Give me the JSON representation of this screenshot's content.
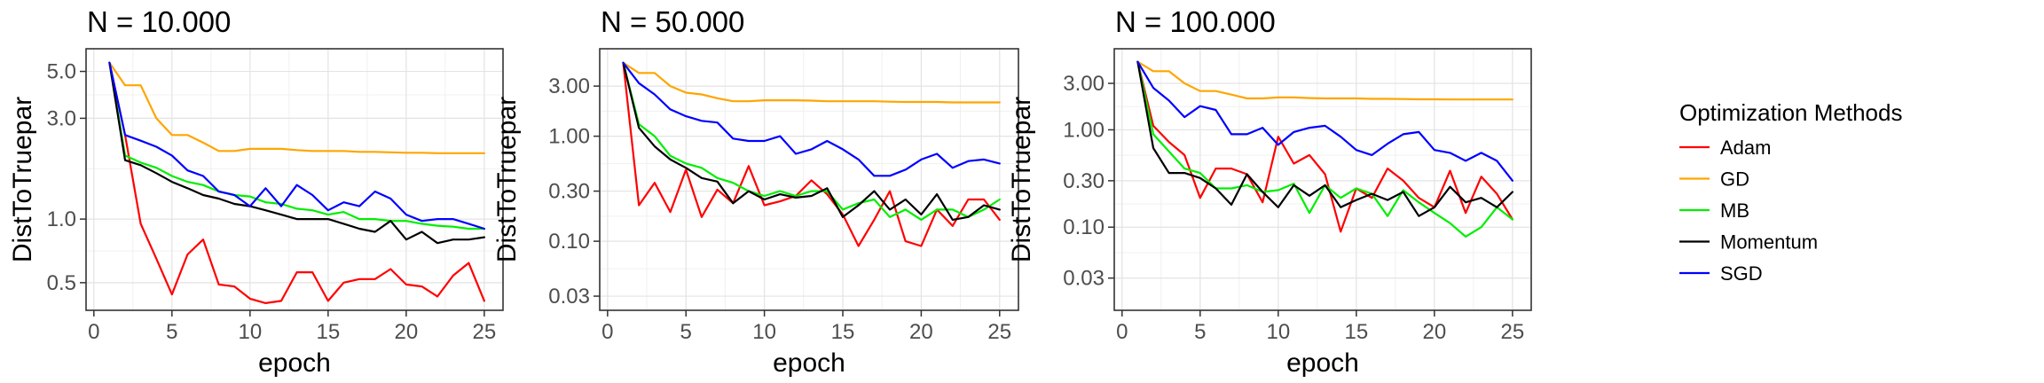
{
  "figure": {
    "legend_title": "Optimization Methods",
    "legend_placement": "right"
  },
  "series_styles": [
    {
      "name": "Adam",
      "color": "#ff0000"
    },
    {
      "name": "GD",
      "color": "#ffa500"
    },
    {
      "name": "MB",
      "color": "#00ee00"
    },
    {
      "name": "Momentum",
      "color": "#000000"
    },
    {
      "name": "SGD",
      "color": "#0000ff"
    }
  ],
  "chart_data": [
    {
      "type": "line",
      "title": "N = 10.000",
      "xlabel": "epoch",
      "ylabel": "DistToTruepar",
      "xlim": [
        -0.5,
        26.2
      ],
      "xticks": [
        0,
        5,
        10,
        15,
        20,
        25
      ],
      "xtick_labels": [
        "0",
        "5",
        "10",
        "15",
        "20",
        "25"
      ],
      "y_scale": "log",
      "ylim": [
        0.37,
        6.4
      ],
      "yticks": [
        0.5,
        1.0,
        3.0,
        5.0
      ],
      "ytick_labels": [
        "0.5",
        "1.0",
        "3.0",
        "5.0"
      ],
      "grid": true,
      "x": [
        1,
        2,
        3,
        4,
        5,
        6,
        7,
        8,
        9,
        10,
        11,
        12,
        13,
        14,
        15,
        16,
        17,
        18,
        19,
        20,
        21,
        22,
        23,
        24,
        25
      ],
      "series": [
        {
          "name": "Adam",
          "values": [
            5.5,
            2.5,
            0.95,
            0.65,
            0.44,
            0.68,
            0.8,
            0.49,
            0.48,
            0.42,
            0.4,
            0.41,
            0.56,
            0.56,
            0.41,
            0.5,
            0.52,
            0.52,
            0.58,
            0.49,
            0.48,
            0.43,
            0.54,
            0.62,
            0.41
          ]
        },
        {
          "name": "GD",
          "values": [
            5.5,
            4.3,
            4.3,
            3.0,
            2.5,
            2.5,
            2.3,
            2.1,
            2.1,
            2.15,
            2.15,
            2.15,
            2.12,
            2.1,
            2.1,
            2.1,
            2.08,
            2.08,
            2.07,
            2.06,
            2.06,
            2.05,
            2.05,
            2.05,
            2.05
          ]
        },
        {
          "name": "MB",
          "values": [
            5.5,
            2.0,
            1.85,
            1.75,
            1.6,
            1.5,
            1.45,
            1.35,
            1.3,
            1.28,
            1.2,
            1.18,
            1.12,
            1.1,
            1.05,
            1.08,
            1.0,
            1.0,
            0.98,
            0.98,
            0.95,
            0.93,
            0.92,
            0.9,
            0.9
          ]
        },
        {
          "name": "Momentum",
          "values": [
            5.5,
            1.9,
            1.8,
            1.65,
            1.5,
            1.4,
            1.3,
            1.25,
            1.18,
            1.15,
            1.1,
            1.05,
            1.0,
            1.0,
            1.0,
            0.95,
            0.9,
            0.87,
            0.98,
            0.8,
            0.87,
            0.77,
            0.8,
            0.8,
            0.82
          ]
        },
        {
          "name": "SGD",
          "values": [
            5.5,
            2.5,
            2.35,
            2.2,
            2.0,
            1.7,
            1.6,
            1.35,
            1.3,
            1.15,
            1.4,
            1.15,
            1.45,
            1.3,
            1.1,
            1.2,
            1.15,
            1.35,
            1.25,
            1.05,
            0.98,
            1.0,
            1.0,
            0.95,
            0.9
          ]
        }
      ]
    },
    {
      "type": "line",
      "title": "N = 50.000",
      "xlabel": "epoch",
      "ylabel": "DistToTruepar",
      "xlim": [
        -0.5,
        26.2
      ],
      "xticks": [
        0,
        5,
        10,
        15,
        20,
        25
      ],
      "xtick_labels": [
        "0",
        "5",
        "10",
        "15",
        "20",
        "25"
      ],
      "y_scale": "log",
      "ylim": [
        0.022,
        6.8
      ],
      "yticks": [
        0.03,
        0.1,
        0.3,
        1.0,
        3.0
      ],
      "ytick_labels": [
        "0.03",
        "0.10",
        "0.30",
        "1.00",
        "3.00"
      ],
      "grid": true,
      "x": [
        1,
        2,
        3,
        4,
        5,
        6,
        7,
        8,
        9,
        10,
        11,
        12,
        13,
        14,
        15,
        16,
        17,
        18,
        19,
        20,
        21,
        22,
        23,
        24,
        25
      ],
      "series": [
        {
          "name": "Adam",
          "values": [
            5.0,
            0.22,
            0.36,
            0.19,
            0.48,
            0.17,
            0.31,
            0.23,
            0.52,
            0.22,
            0.24,
            0.27,
            0.38,
            0.28,
            0.18,
            0.09,
            0.16,
            0.3,
            0.1,
            0.09,
            0.2,
            0.14,
            0.25,
            0.25,
            0.16
          ]
        },
        {
          "name": "GD",
          "values": [
            5.0,
            4.0,
            4.0,
            3.0,
            2.6,
            2.5,
            2.3,
            2.15,
            2.15,
            2.2,
            2.2,
            2.2,
            2.18,
            2.15,
            2.15,
            2.15,
            2.15,
            2.13,
            2.12,
            2.12,
            2.12,
            2.1,
            2.1,
            2.1,
            2.1
          ]
        },
        {
          "name": "MB",
          "values": [
            5.0,
            1.3,
            1.0,
            0.65,
            0.55,
            0.5,
            0.4,
            0.36,
            0.3,
            0.27,
            0.3,
            0.27,
            0.3,
            0.3,
            0.2,
            0.23,
            0.25,
            0.17,
            0.2,
            0.16,
            0.2,
            0.2,
            0.17,
            0.2,
            0.25
          ]
        },
        {
          "name": "Momentum",
          "values": [
            5.0,
            1.2,
            0.8,
            0.6,
            0.5,
            0.4,
            0.37,
            0.23,
            0.3,
            0.25,
            0.28,
            0.26,
            0.27,
            0.32,
            0.17,
            0.22,
            0.3,
            0.2,
            0.25,
            0.18,
            0.28,
            0.16,
            0.17,
            0.22,
            0.2
          ]
        },
        {
          "name": "SGD",
          "values": [
            5.0,
            3.2,
            2.5,
            1.8,
            1.55,
            1.4,
            1.35,
            0.95,
            0.9,
            0.9,
            1.0,
            0.68,
            0.75,
            0.9,
            0.75,
            0.6,
            0.42,
            0.42,
            0.48,
            0.6,
            0.68,
            0.5,
            0.58,
            0.6,
            0.55
          ]
        }
      ]
    },
    {
      "type": "line",
      "title": "N = 100.000",
      "xlabel": "epoch",
      "ylabel": "DistToTruepar",
      "xlim": [
        -0.5,
        26.2
      ],
      "xticks": [
        0,
        5,
        10,
        15,
        20,
        25
      ],
      "xtick_labels": [
        "0",
        "5",
        "10",
        "15",
        "20",
        "25"
      ],
      "y_scale": "log",
      "ylim": [
        0.014,
        6.8
      ],
      "yticks": [
        0.03,
        0.1,
        0.3,
        1.0,
        3.0
      ],
      "ytick_labels": [
        "0.03",
        "0.10",
        "0.30",
        "1.00",
        "3.00"
      ],
      "grid": true,
      "x": [
        1,
        2,
        3,
        4,
        5,
        6,
        7,
        8,
        9,
        10,
        11,
        12,
        13,
        14,
        15,
        16,
        17,
        18,
        19,
        20,
        21,
        22,
        23,
        24,
        25
      ],
      "series": [
        {
          "name": "Adam",
          "values": [
            5.0,
            1.1,
            0.75,
            0.55,
            0.2,
            0.4,
            0.4,
            0.35,
            0.18,
            0.85,
            0.45,
            0.55,
            0.35,
            0.09,
            0.25,
            0.2,
            0.4,
            0.3,
            0.2,
            0.16,
            0.38,
            0.14,
            0.33,
            0.22,
            0.12
          ]
        },
        {
          "name": "GD",
          "values": [
            5.0,
            4.0,
            4.0,
            3.0,
            2.5,
            2.5,
            2.3,
            2.1,
            2.1,
            2.15,
            2.15,
            2.12,
            2.1,
            2.1,
            2.1,
            2.08,
            2.08,
            2.07,
            2.06,
            2.06,
            2.05,
            2.05,
            2.05,
            2.05,
            2.05
          ]
        },
        {
          "name": "MB",
          "values": [
            5.0,
            0.9,
            0.6,
            0.4,
            0.36,
            0.25,
            0.25,
            0.27,
            0.23,
            0.24,
            0.28,
            0.14,
            0.27,
            0.2,
            0.25,
            0.22,
            0.13,
            0.24,
            0.18,
            0.14,
            0.11,
            0.08,
            0.1,
            0.16,
            0.12
          ]
        },
        {
          "name": "Momentum",
          "values": [
            5.0,
            0.65,
            0.36,
            0.36,
            0.32,
            0.25,
            0.17,
            0.35,
            0.23,
            0.16,
            0.27,
            0.21,
            0.27,
            0.16,
            0.19,
            0.22,
            0.19,
            0.23,
            0.13,
            0.16,
            0.26,
            0.18,
            0.2,
            0.16,
            0.23
          ]
        },
        {
          "name": "SGD",
          "values": [
            5.0,
            2.7,
            2.0,
            1.35,
            1.75,
            1.6,
            0.9,
            0.9,
            1.05,
            0.7,
            0.95,
            1.05,
            1.1,
            0.85,
            0.62,
            0.55,
            0.72,
            0.9,
            0.95,
            0.62,
            0.58,
            0.48,
            0.58,
            0.48,
            0.3
          ]
        }
      ]
    }
  ]
}
